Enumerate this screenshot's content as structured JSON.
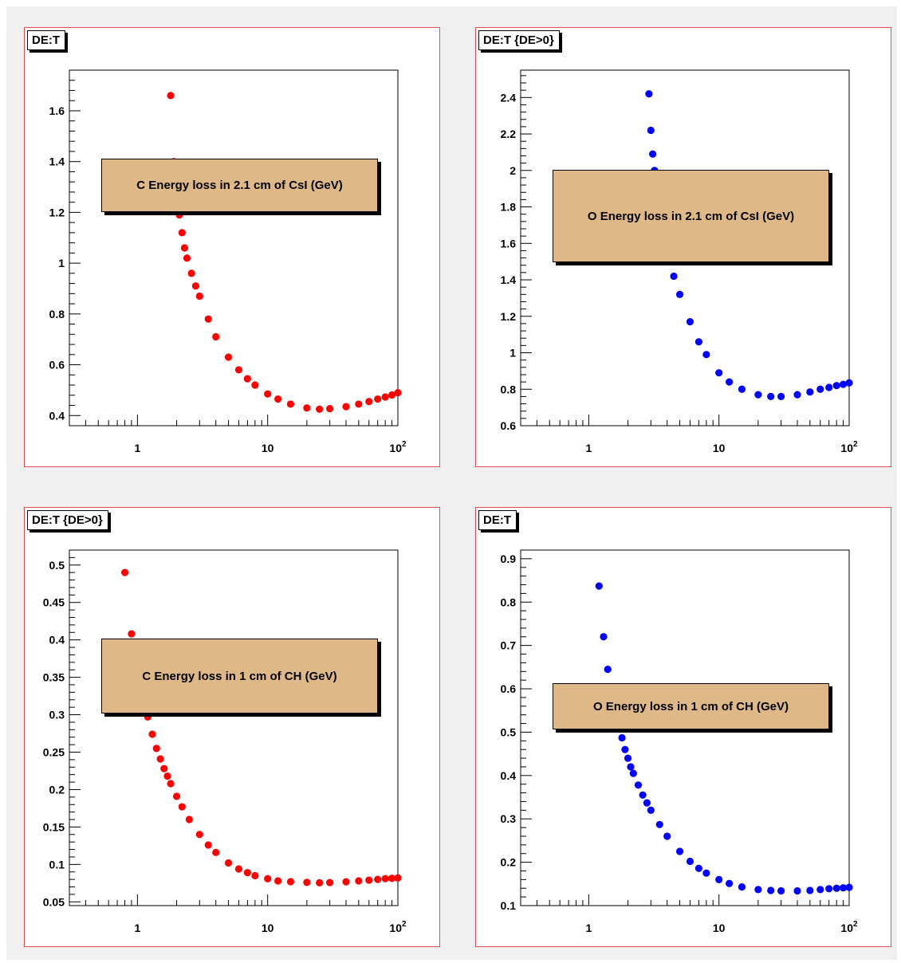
{
  "colors": {
    "red_series": "#ff0000",
    "blue_series": "#0000ff",
    "legend_fill": "#deb887",
    "pad_border": "#e05050"
  },
  "chart_data": [
    {
      "type": "scatter",
      "pad_title": "DE:T",
      "legend": "C Energy loss in 2.1 cm of CsI (GeV)",
      "color": "#ff0000",
      "x_scale": "log",
      "xlim": [
        0.3,
        100
      ],
      "ylim": [
        0.36,
        1.76
      ],
      "x_ticks": [
        "1",
        "10",
        "10^2"
      ],
      "y_ticks": [
        0.4,
        0.6,
        0.8,
        1,
        1.2,
        1.4,
        1.6
      ],
      "y_tick_labels": [
        "0.4",
        "0.6",
        "0.8",
        "1",
        "1.2",
        "1.4",
        "1.6"
      ],
      "x": [
        1.8,
        1.9,
        2.0,
        2.1,
        2.2,
        2.3,
        2.4,
        2.6,
        2.8,
        3.0,
        3.5,
        4,
        5,
        6,
        7,
        8,
        10,
        12,
        15,
        20,
        25,
        30,
        40,
        50,
        60,
        70,
        80,
        90,
        100
      ],
      "y": [
        1.66,
        1.4,
        1.32,
        1.19,
        1.12,
        1.06,
        1.02,
        0.96,
        0.91,
        0.87,
        0.78,
        0.71,
        0.63,
        0.58,
        0.545,
        0.52,
        0.485,
        0.465,
        0.445,
        0.43,
        0.425,
        0.427,
        0.435,
        0.445,
        0.455,
        0.465,
        0.473,
        0.481,
        0.49
      ]
    },
    {
      "type": "scatter",
      "pad_title": "DE:T {DE>0}",
      "legend": "O Energy loss in 2.1 cm of CsI (GeV)",
      "color": "#0000ff",
      "x_scale": "log",
      "xlim": [
        0.3,
        100
      ],
      "ylim": [
        0.6,
        2.55
      ],
      "x_ticks": [
        "1",
        "10",
        "10^2"
      ],
      "y_ticks": [
        0.6,
        0.8,
        1,
        1.2,
        1.4,
        1.6,
        1.8,
        2,
        2.2,
        2.4
      ],
      "y_tick_labels": [
        "0.6",
        "0.8",
        "1",
        "1.2",
        "1.4",
        "1.6",
        "1.8",
        "2",
        "2.2",
        "2.4"
      ],
      "x": [
        2.9,
        3.0,
        3.1,
        3.2,
        3.5,
        4.0,
        4.5,
        5,
        6,
        7,
        8,
        10,
        12,
        15,
        20,
        25,
        30,
        40,
        50,
        60,
        70,
        80,
        90,
        100
      ],
      "y": [
        2.42,
        2.22,
        2.09,
        2.0,
        1.75,
        1.55,
        1.42,
        1.32,
        1.17,
        1.06,
        0.99,
        0.89,
        0.84,
        0.8,
        0.77,
        0.76,
        0.76,
        0.77,
        0.785,
        0.8,
        0.81,
        0.82,
        0.827,
        0.835
      ]
    },
    {
      "type": "scatter",
      "pad_title": "DE:T {DE>0}",
      "legend": "C Energy loss in 1 cm of CH (GeV)",
      "color": "#ff0000",
      "x_scale": "log",
      "xlim": [
        0.3,
        100
      ],
      "ylim": [
        0.045,
        0.52
      ],
      "x_ticks": [
        "1",
        "10",
        "10^2"
      ],
      "y_ticks": [
        0.05,
        0.1,
        0.15,
        0.2,
        0.25,
        0.3,
        0.35,
        0.4,
        0.45,
        0.5
      ],
      "y_tick_labels": [
        "0.05",
        "0.1",
        "0.15",
        "0.2",
        "0.25",
        "0.3",
        "0.35",
        "0.4",
        "0.45",
        "0.5"
      ],
      "x": [
        0.8,
        0.9,
        1.0,
        1.1,
        1.2,
        1.3,
        1.4,
        1.5,
        1.6,
        1.7,
        1.8,
        2.0,
        2.2,
        2.5,
        3,
        3.5,
        4,
        5,
        6,
        7,
        8,
        10,
        12,
        15,
        20,
        25,
        30,
        40,
        50,
        60,
        70,
        80,
        90,
        100
      ],
      "y": [
        0.49,
        0.408,
        0.36,
        0.325,
        0.297,
        0.274,
        0.255,
        0.241,
        0.228,
        0.218,
        0.208,
        0.191,
        0.177,
        0.16,
        0.14,
        0.126,
        0.116,
        0.102,
        0.094,
        0.089,
        0.085,
        0.081,
        0.078,
        0.077,
        0.076,
        0.0755,
        0.0758,
        0.0768,
        0.078,
        0.079,
        0.08,
        0.081,
        0.0815,
        0.082
      ]
    },
    {
      "type": "scatter",
      "pad_title": "DE:T",
      "legend": "O Energy loss in 1 cm of CH (GeV)",
      "color": "#0000ff",
      "x_scale": "log",
      "xlim": [
        0.3,
        100
      ],
      "ylim": [
        0.1,
        0.92
      ],
      "x_ticks": [
        "1",
        "10",
        "10^2"
      ],
      "y_ticks": [
        0.1,
        0.2,
        0.3,
        0.4,
        0.5,
        0.6,
        0.7,
        0.8,
        0.9
      ],
      "y_tick_labels": [
        "0.1",
        "0.2",
        "0.3",
        "0.4",
        "0.5",
        "0.6",
        "0.7",
        "0.8",
        "0.9"
      ],
      "x": [
        1.2,
        1.3,
        1.4,
        1.5,
        1.6,
        1.7,
        1.8,
        1.9,
        2.0,
        2.1,
        2.2,
        2.4,
        2.6,
        2.8,
        3.0,
        3.5,
        4,
        5,
        6,
        7,
        8,
        10,
        12,
        15,
        20,
        25,
        30,
        40,
        50,
        60,
        70,
        80,
        90,
        100
      ],
      "y": [
        0.837,
        0.72,
        0.645,
        0.59,
        0.55,
        0.515,
        0.487,
        0.46,
        0.44,
        0.42,
        0.405,
        0.378,
        0.355,
        0.337,
        0.32,
        0.287,
        0.26,
        0.225,
        0.202,
        0.186,
        0.175,
        0.16,
        0.151,
        0.143,
        0.137,
        0.135,
        0.134,
        0.134,
        0.135,
        0.137,
        0.139,
        0.14,
        0.141,
        0.142
      ]
    }
  ]
}
